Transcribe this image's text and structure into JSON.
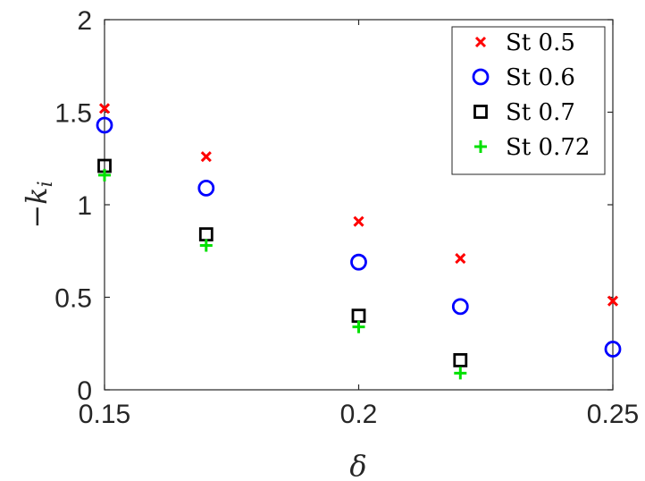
{
  "chart_data": {
    "type": "scatter",
    "xlabel": "δ",
    "ylabel": "−k",
    "ylabel_sub": "i",
    "xlim": [
      0.15,
      0.25
    ],
    "ylim": [
      0,
      2
    ],
    "x_ticks": [
      0.15,
      0.2,
      0.25
    ],
    "x_tick_labels": [
      "0.15",
      "0.2",
      "0.25"
    ],
    "y_ticks": [
      0,
      0.5,
      1,
      1.5,
      2
    ],
    "y_tick_labels": [
      "0",
      "0.5",
      "1",
      "1.5",
      "2"
    ],
    "grid": false,
    "legend_position": "top-right",
    "series": [
      {
        "name": "St 0.5",
        "marker": "x",
        "color": "#ff0000",
        "x": [
          0.15,
          0.17,
          0.2,
          0.22,
          0.25
        ],
        "y": [
          1.52,
          1.26,
          0.91,
          0.71,
          0.48
        ]
      },
      {
        "name": "St 0.6",
        "marker": "circle",
        "color": "#0000ff",
        "x": [
          0.15,
          0.17,
          0.2,
          0.22,
          0.25
        ],
        "y": [
          1.43,
          1.09,
          0.69,
          0.45,
          0.22
        ]
      },
      {
        "name": "St 0.7",
        "marker": "square",
        "color": "#000000",
        "x": [
          0.15,
          0.17,
          0.2,
          0.22
        ],
        "y": [
          1.21,
          0.84,
          0.4,
          0.16
        ]
      },
      {
        "name": "St 0.72",
        "marker": "plus",
        "color": "#00e000",
        "x": [
          0.15,
          0.17,
          0.2,
          0.22
        ],
        "y": [
          1.16,
          0.78,
          0.34,
          0.09
        ]
      }
    ]
  }
}
